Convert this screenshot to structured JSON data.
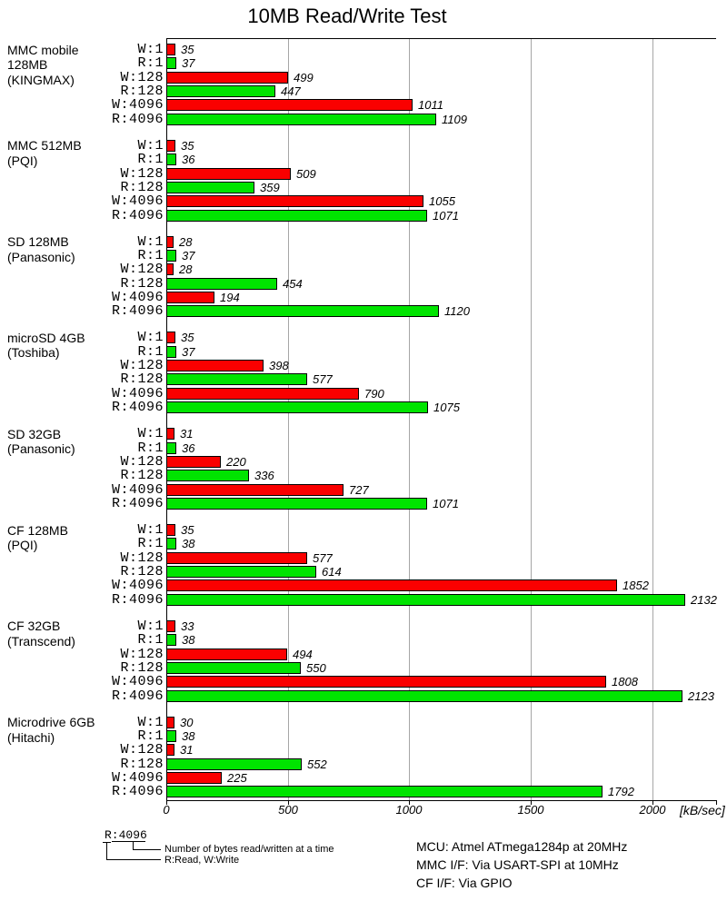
{
  "title": "10MB Read/Write Test",
  "chart_data": {
    "type": "bar",
    "orientation": "horizontal",
    "title": "10MB Read/Write Test",
    "xlabel": "[kB/sec]",
    "xlim": [
      0,
      2260
    ],
    "xticks": [
      0,
      500,
      1000,
      1500,
      2000
    ],
    "grid": "vertical",
    "row_labels": [
      "W:1",
      "R:1",
      "W:128",
      "R:128",
      "W:4096",
      "R:4096"
    ],
    "write_color": "#fa0000",
    "read_color": "#00e400",
    "groups": [
      {
        "name_lines": [
          "MMC mobile",
          "128MB",
          "(KINGMAX)"
        ],
        "values": [
          35,
          37,
          499,
          447,
          1011,
          1109
        ]
      },
      {
        "name_lines": [
          "MMC 512MB",
          "(PQI)"
        ],
        "values": [
          35,
          36,
          509,
          359,
          1055,
          1071
        ]
      },
      {
        "name_lines": [
          "SD 128MB",
          "(Panasonic)"
        ],
        "values": [
          28,
          37,
          28,
          454,
          194,
          1120
        ]
      },
      {
        "name_lines": [
          "microSD 4GB",
          "(Toshiba)"
        ],
        "values": [
          35,
          37,
          398,
          577,
          790,
          1075
        ]
      },
      {
        "name_lines": [
          "SD 32GB",
          "(Panasonic)"
        ],
        "values": [
          31,
          36,
          220,
          336,
          727,
          1071
        ]
      },
      {
        "name_lines": [
          "CF 128MB",
          "(PQI)"
        ],
        "values": [
          35,
          38,
          577,
          614,
          1852,
          2132
        ]
      },
      {
        "name_lines": [
          "CF 32GB",
          "(Transcend)"
        ],
        "values": [
          33,
          38,
          494,
          550,
          1808,
          2123
        ]
      },
      {
        "name_lines": [
          "Microdrive 6GB",
          "(Hitachi)"
        ],
        "values": [
          30,
          38,
          31,
          552,
          225,
          1792
        ]
      }
    ]
  },
  "legend": {
    "example": "R:4096",
    "bytes_note": "Number of bytes read/written at a time",
    "rw_note": "R:Read, W:Write"
  },
  "notes": {
    "line1": "MCU: Atmel ATmega1284p at 20MHz",
    "line2": "MMC I/F: Via USART-SPI at 10MHz",
    "line3": "CF I/F: Via GPIO"
  }
}
